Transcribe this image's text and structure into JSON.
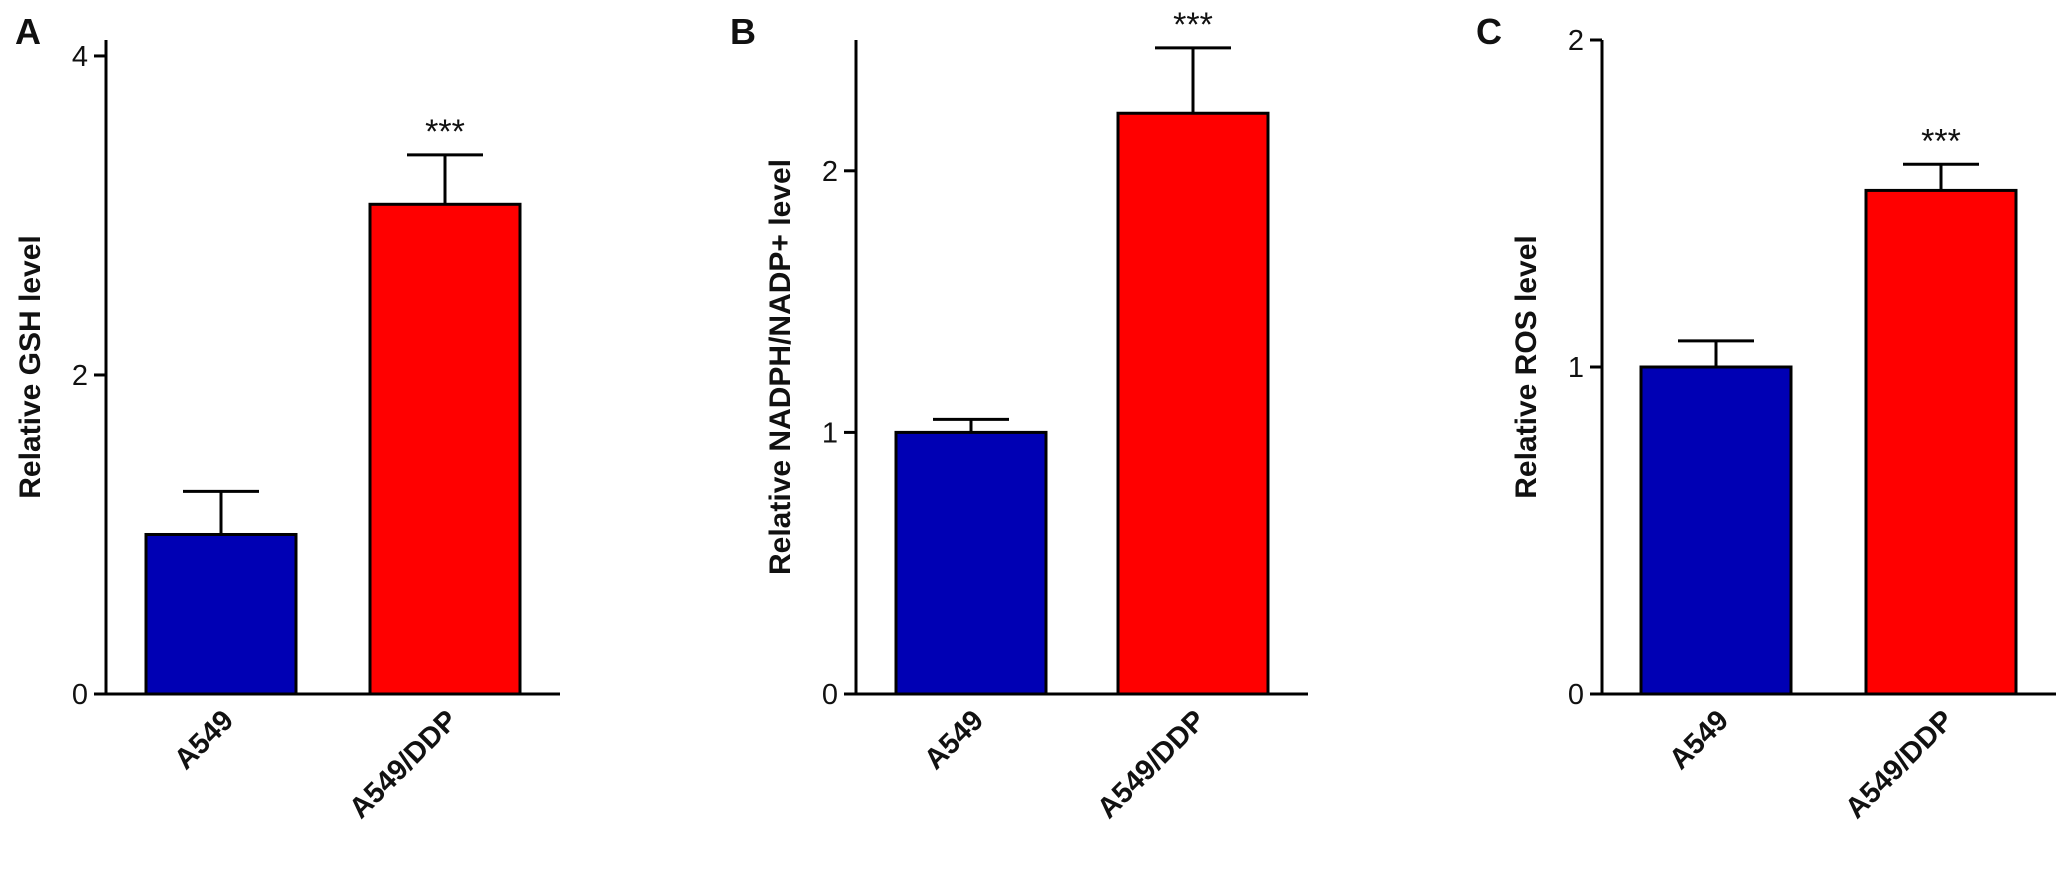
{
  "colors": {
    "A549": "#0000B4",
    "A549/DDP": "#FF0000",
    "axis": "#000000"
  },
  "chart_data": [
    {
      "panel": "A",
      "type": "bar",
      "categories": [
        "A549",
        "A549/DDP"
      ],
      "values": [
        1.0,
        3.07
      ],
      "errors": [
        0.27,
        0.31
      ],
      "significance": [
        "",
        "***"
      ],
      "ylabel": "Relative GSH level",
      "ylim": [
        0,
        4.1
      ],
      "yticks": [
        0,
        2,
        4
      ],
      "ytick_labels": [
        "0",
        "2",
        "4"
      ],
      "grid": false
    },
    {
      "panel": "B",
      "type": "bar",
      "categories": [
        "A549",
        "A549/DDP"
      ],
      "values": [
        1.0,
        2.22
      ],
      "errors": [
        0.05,
        0.25
      ],
      "significance": [
        "",
        "***"
      ],
      "ylabel": "Relative NADPH/NADP+ level",
      "ylim": [
        0,
        2.5
      ],
      "yticks": [
        0,
        1,
        2
      ],
      "ytick_labels": [
        "0",
        "1",
        "2"
      ],
      "grid": false
    },
    {
      "panel": "C",
      "type": "bar",
      "categories": [
        "A549",
        "A549/DDP"
      ],
      "values": [
        1.0,
        1.54
      ],
      "errors": [
        0.08,
        0.08
      ],
      "significance": [
        "",
        "***"
      ],
      "ylabel": "Relative ROS level",
      "ylim": [
        0,
        2
      ],
      "yticks": [
        0,
        1,
        2
      ],
      "ytick_labels": [
        "0",
        "1",
        "2"
      ],
      "grid": false
    }
  ]
}
